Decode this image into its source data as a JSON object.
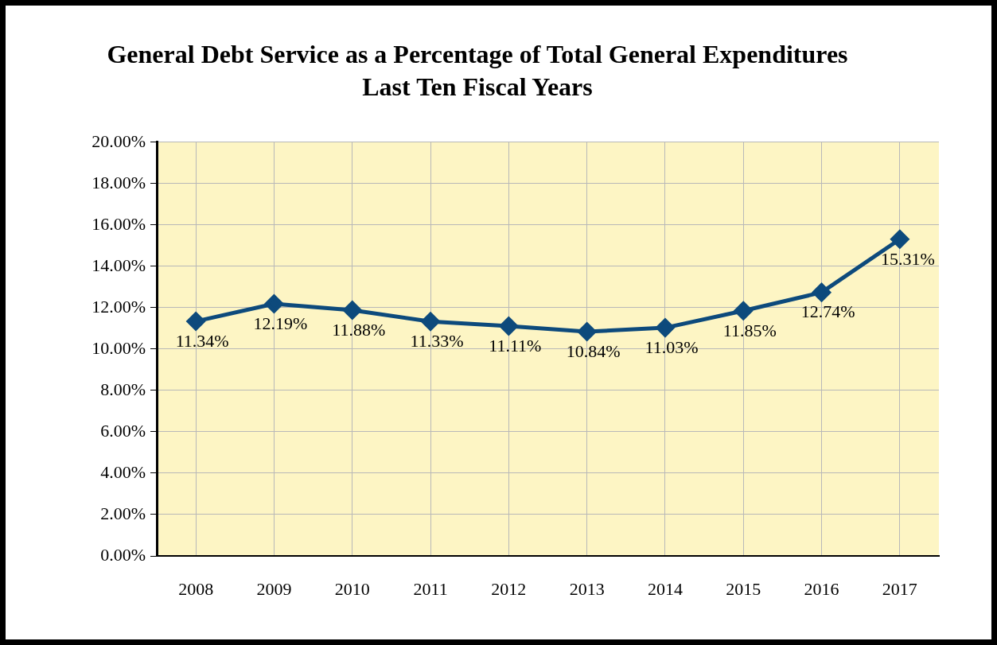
{
  "chart_data": {
    "type": "line",
    "title": "General Debt Service as a Percentage of Total General Expenditures",
    "subtitle": "Last Ten Fiscal Years",
    "categories": [
      "2008",
      "2009",
      "2010",
      "2011",
      "2012",
      "2013",
      "2014",
      "2015",
      "2016",
      "2017"
    ],
    "series": [
      {
        "color": "#0d4a7c",
        "values": [
          11.34,
          12.19,
          11.88,
          11.33,
          11.11,
          10.84,
          11.03,
          11.85,
          12.74,
          15.31
        ],
        "value_labels": [
          "11.34%",
          "12.19%",
          "11.88%",
          "11.33%",
          "11.11%",
          "10.84%",
          "11.03%",
          "11.85%",
          "12.74%",
          "15.31%"
        ]
      }
    ],
    "ylim": [
      0,
      20
    ],
    "yticks": [
      {
        "value": 0,
        "label": "0.00%"
      },
      {
        "value": 2,
        "label": "2.00%"
      },
      {
        "value": 4,
        "label": "4.00%"
      },
      {
        "value": 6,
        "label": "6.00%"
      },
      {
        "value": 8,
        "label": "8.00%"
      },
      {
        "value": 10,
        "label": "10.00%"
      },
      {
        "value": 12,
        "label": "12.00%"
      },
      {
        "value": 14,
        "label": "14.00%"
      },
      {
        "value": 16,
        "label": "16.00%"
      },
      {
        "value": 18,
        "label": "18.00%"
      },
      {
        "value": 20,
        "label": "20.00%"
      }
    ],
    "grid": true,
    "legend": false,
    "marker": "diamond",
    "line_style": "solid"
  }
}
